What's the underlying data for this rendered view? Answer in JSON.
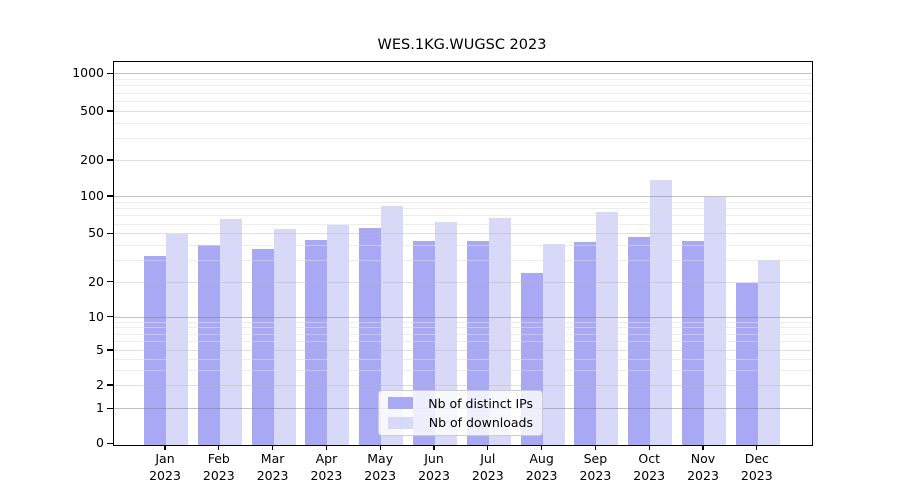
{
  "title": "WES.1KG.WUGSC 2023",
  "chart_data": {
    "type": "bar",
    "title": "WES.1KG.WUGSC 2023",
    "categories": [
      "Jan 2023",
      "Feb 2023",
      "Mar 2023",
      "Apr 2023",
      "May 2023",
      "Jun 2023",
      "Jul 2023",
      "Aug 2023",
      "Sep 2023",
      "Oct 2023",
      "Nov 2023",
      "Dec 2023"
    ],
    "x_axis": {
      "months": [
        "Jan",
        "Feb",
        "Mar",
        "Apr",
        "May",
        "Jun",
        "Jul",
        "Aug",
        "Sep",
        "Oct",
        "Nov",
        "Dec"
      ],
      "year_label": "2023"
    },
    "y_axis": {
      "scale": "symlog",
      "tick_values": [
        0,
        1,
        2,
        5,
        10,
        20,
        50,
        100,
        200,
        500,
        1000
      ],
      "tick_labels": [
        "0",
        "1",
        "2",
        "5",
        "10",
        "20",
        "50",
        "100",
        "200",
        "500",
        "1000"
      ]
    },
    "series": [
      {
        "name": "Nb of distinct IPs",
        "color": "#a8a8f4",
        "values": [
          33,
          41,
          38,
          45,
          56,
          44,
          44,
          24,
          43,
          48,
          44,
          20
        ]
      },
      {
        "name": "Nb of downloads",
        "color": "#d8d8f8",
        "values": [
          50,
          66,
          55,
          60,
          85,
          63,
          68,
          42,
          76,
          140,
          100,
          31
        ]
      }
    ],
    "legend_position": "lower center",
    "grid": true,
    "colors": {
      "major_gridline": "rgba(120,120,120,0.45)",
      "minor_gridline": "rgba(185,185,185,0.45)",
      "subminor_gridline": "rgba(222,222,222,0.55)"
    }
  }
}
